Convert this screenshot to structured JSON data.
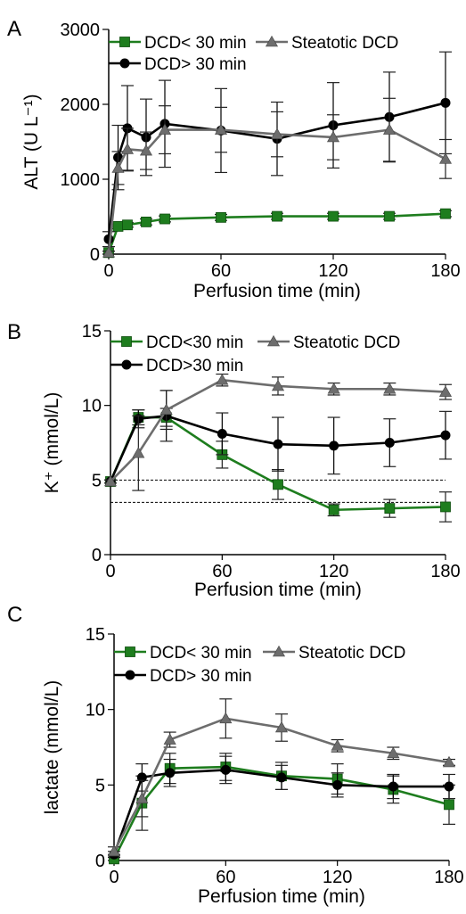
{
  "chart_data": [
    {
      "panel_label": "A",
      "type": "line",
      "xlabel": "Perfusion time (min)",
      "ylabel": "ALT (U L⁻¹)",
      "xlim": [
        0,
        180
      ],
      "ylim": [
        0,
        3000
      ],
      "xticks": [
        0,
        60,
        120,
        180
      ],
      "yticks": [
        0,
        1000,
        2000,
        3000
      ],
      "grid": false,
      "legend_position": "top-left",
      "reference_lines": [],
      "series": [
        {
          "name": "DCD< 30 min",
          "color": "#1e7d1e",
          "marker": "square",
          "x": [
            0,
            5,
            10,
            20,
            30,
            60,
            90,
            120,
            150,
            180
          ],
          "y": [
            20,
            370,
            390,
            430,
            470,
            490,
            505,
            505,
            505,
            540
          ],
          "err": [
            20,
            30,
            30,
            40,
            40,
            40,
            40,
            40,
            40,
            40
          ]
        },
        {
          "name": "DCD> 30 min",
          "color": "#000000",
          "marker": "circle",
          "x": [
            0,
            5,
            10,
            20,
            30,
            60,
            90,
            120,
            150,
            180
          ],
          "y": [
            200,
            1290,
            1680,
            1560,
            1740,
            1650,
            1540,
            1720,
            1830,
            2020
          ],
          "err": [
            100,
            430,
            570,
            510,
            580,
            560,
            490,
            570,
            600,
            680
          ]
        },
        {
          "name": "Steatotic DCD",
          "color": "#6d6d6d",
          "marker": "triangle",
          "x": [
            0,
            5,
            10,
            20,
            30,
            60,
            90,
            120,
            150,
            180
          ],
          "y": [
            20,
            1150,
            1400,
            1380,
            1660,
            1660,
            1600,
            1560,
            1660,
            1270
          ],
          "err": [
            20,
            220,
            280,
            250,
            320,
            300,
            300,
            300,
            420,
            260
          ]
        }
      ]
    },
    {
      "panel_label": "B",
      "type": "line",
      "xlabel": "Perfusion time (min)",
      "ylabel": "K⁺ (mmol/L)",
      "xlim": [
        0,
        180
      ],
      "ylim": [
        0,
        15
      ],
      "xticks": [
        0,
        60,
        120,
        180
      ],
      "yticks": [
        0,
        5,
        10,
        15
      ],
      "grid": false,
      "legend_position": "top-left",
      "reference_lines": [
        5.0,
        3.5
      ],
      "series": [
        {
          "name": "DCD<30 min",
          "color": "#1e7d1e",
          "marker": "square",
          "x": [
            0,
            15,
            30,
            60,
            90,
            120,
            150,
            180
          ],
          "y": [
            4.9,
            9.2,
            9.2,
            6.7,
            4.7,
            3.0,
            3.1,
            3.2
          ],
          "err": [
            0.1,
            0.5,
            0.6,
            0.9,
            1.0,
            0.4,
            0.6,
            1.0
          ]
        },
        {
          "name": "DCD>30 min",
          "color": "#000000",
          "marker": "circle",
          "x": [
            0,
            15,
            30,
            60,
            90,
            120,
            150,
            180
          ],
          "y": [
            4.9,
            9.1,
            9.3,
            8.1,
            7.4,
            7.3,
            7.5,
            8.0
          ],
          "err": [
            0.1,
            0.6,
            1.7,
            1.4,
            1.8,
            1.9,
            1.6,
            1.6
          ]
        },
        {
          "name": "Steatotic DCD",
          "color": "#6d6d6d",
          "marker": "triangle",
          "x": [
            0,
            15,
            30,
            60,
            90,
            120,
            150,
            180
          ],
          "y": [
            4.9,
            6.8,
            9.7,
            11.7,
            11.3,
            11.1,
            11.1,
            10.9
          ],
          "err": [
            0.1,
            2.5,
            1.3,
            0.4,
            0.6,
            0.4,
            0.4,
            0.5
          ]
        }
      ]
    },
    {
      "panel_label": "C",
      "type": "line",
      "xlabel": "Perfusion time (min)",
      "ylabel": "lactate  (mmol/L)",
      "xlim": [
        0,
        180
      ],
      "ylim": [
        0,
        15
      ],
      "xticks": [
        0,
        60,
        120,
        180
      ],
      "yticks": [
        0,
        5,
        10,
        15
      ],
      "grid": false,
      "legend_position": "top-left",
      "reference_lines": [],
      "series": [
        {
          "name": "DCD< 30 min",
          "color": "#1e7d1e",
          "marker": "square",
          "x": [
            0,
            15,
            30,
            60,
            90,
            120,
            150,
            180
          ],
          "y": [
            0.1,
            3.8,
            6.1,
            6.2,
            5.6,
            5.4,
            4.7,
            3.7
          ],
          "err": [
            0.3,
            1.8,
            1.0,
            0.9,
            0.9,
            1.0,
            0.9,
            1.3
          ]
        },
        {
          "name": "DCD> 30 min",
          "color": "#000000",
          "marker": "circle",
          "x": [
            0,
            15,
            30,
            60,
            90,
            120,
            150,
            180
          ],
          "y": [
            0.4,
            5.5,
            5.8,
            6.0,
            5.5,
            5.0,
            4.9,
            4.9
          ],
          "err": [
            0.2,
            0.9,
            0.9,
            0.9,
            0.8,
            0.8,
            0.8,
            0.8
          ]
        },
        {
          "name": "Steatotic DCD",
          "color": "#6d6d6d",
          "marker": "triangle",
          "x": [
            0,
            15,
            30,
            60,
            90,
            120,
            150,
            180
          ],
          "y": [
            0.6,
            4.1,
            8.0,
            9.4,
            8.8,
            7.6,
            7.1,
            6.5
          ],
          "err": [
            0.3,
            1.2,
            0.5,
            1.3,
            0.9,
            0.4,
            0.4,
            0.2
          ]
        }
      ]
    }
  ]
}
